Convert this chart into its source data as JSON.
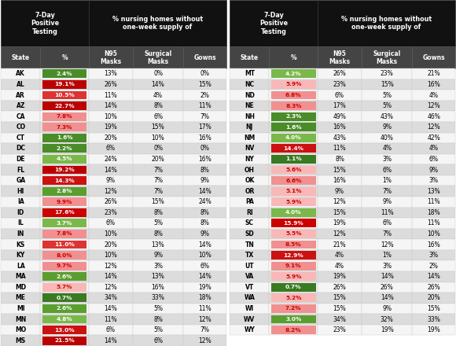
{
  "left_states": [
    "AK",
    "AL",
    "AR",
    "AZ",
    "CA",
    "CO",
    "CT",
    "DC",
    "DE",
    "FL",
    "GA",
    "HI",
    "IA",
    "ID",
    "IL",
    "IN",
    "KS",
    "KY",
    "LA",
    "MA",
    "MD",
    "ME",
    "MI",
    "MN",
    "MO",
    "MS"
  ],
  "left_pct": [
    2.4,
    19.1,
    10.5,
    22.7,
    7.8,
    7.3,
    1.6,
    2.2,
    4.5,
    19.2,
    14.3,
    2.8,
    9.9,
    17.6,
    3.7,
    7.8,
    11.0,
    8.0,
    9.7,
    2.6,
    5.7,
    0.7,
    2.6,
    4.8,
    13.0,
    21.5
  ],
  "left_n95": [
    13,
    26,
    11,
    14,
    10,
    19,
    20,
    6,
    24,
    14,
    9,
    12,
    26,
    23,
    6,
    10,
    20,
    10,
    12,
    14,
    12,
    34,
    14,
    11,
    6,
    14
  ],
  "left_surg": [
    0,
    14,
    4,
    8,
    6,
    15,
    10,
    0,
    20,
    7,
    7,
    7,
    15,
    8,
    5,
    8,
    13,
    9,
    3,
    13,
    16,
    33,
    5,
    8,
    5,
    6
  ],
  "left_gowns": [
    0,
    15,
    2,
    11,
    7,
    17,
    16,
    0,
    16,
    8,
    9,
    14,
    24,
    8,
    8,
    9,
    14,
    10,
    6,
    14,
    19,
    18,
    11,
    12,
    7,
    12
  ],
  "right_states": [
    "MT",
    "NC",
    "ND",
    "NE",
    "NH",
    "NJ",
    "NM",
    "NV",
    "NY",
    "OH",
    "OK",
    "OR",
    "PA",
    "RI",
    "SC",
    "SD",
    "TN",
    "TX",
    "UT",
    "VA",
    "VT",
    "WA",
    "WI",
    "WV",
    "WY"
  ],
  "right_pct": [
    4.2,
    5.9,
    6.8,
    8.3,
    2.3,
    1.6,
    4.0,
    14.4,
    1.1,
    5.6,
    6.6,
    5.1,
    5.9,
    4.0,
    15.9,
    5.5,
    8.5,
    12.9,
    9.1,
    5.9,
    0.7,
    5.2,
    7.2,
    3.0,
    8.2
  ],
  "right_n95": [
    26,
    23,
    6,
    17,
    49,
    16,
    43,
    11,
    8,
    15,
    16,
    9,
    12,
    15,
    19,
    12,
    21,
    4,
    4,
    19,
    26,
    15,
    15,
    34,
    23
  ],
  "right_surg": [
    23,
    15,
    5,
    5,
    43,
    9,
    40,
    4,
    3,
    6,
    1,
    7,
    9,
    11,
    6,
    7,
    12,
    1,
    3,
    14,
    26,
    14,
    9,
    32,
    19
  ],
  "right_gowns": [
    21,
    16,
    4,
    12,
    46,
    12,
    42,
    4,
    6,
    9,
    3,
    13,
    11,
    18,
    11,
    10,
    16,
    3,
    2,
    14,
    26,
    20,
    15,
    33,
    19
  ],
  "header_bg": "#111111",
  "header_text": "#ffffff",
  "subheader_bg": "#444444",
  "subheader_text": "#ffffff",
  "row_odd": "#f5f5f5",
  "row_even": "#dcdcdc",
  "divider": "#888888"
}
